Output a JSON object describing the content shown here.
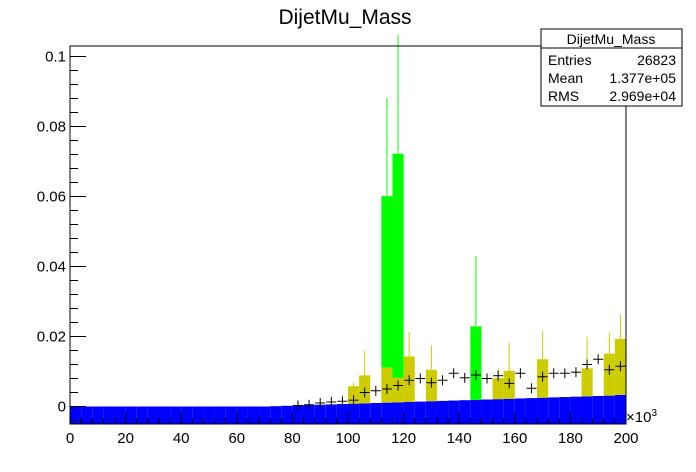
{
  "chart_data": {
    "type": "bar",
    "title": "DijetMu_Mass",
    "xlabel": "",
    "ylabel": "",
    "x_multiplier_label": "×10",
    "x_multiplier_exp": "3",
    "xlim": [
      0,
      200
    ],
    "ylim": [
      -0.005,
      0.103
    ],
    "x_ticks": [
      0,
      20,
      40,
      60,
      80,
      100,
      120,
      140,
      160,
      180,
      200
    ],
    "x_tick_labels": [
      "0",
      "20",
      "40",
      "60",
      "80",
      "100",
      "120",
      "140",
      "160",
      "180",
      "200"
    ],
    "y_ticks": [
      0,
      0.02,
      0.04,
      0.06,
      0.08,
      0.1
    ],
    "y_tick_labels": [
      "0",
      "0.02",
      "0.04",
      "0.06",
      "0.08",
      "0.1"
    ],
    "bin_width": 4,
    "series": [
      {
        "kind": "stack",
        "color": "#0000ff",
        "bins": [
          [
            0,
            0.0
          ],
          [
            4,
            0.0
          ],
          [
            8,
            0.0
          ],
          [
            12,
            0.0
          ],
          [
            16,
            0.0
          ],
          [
            20,
            0.0
          ],
          [
            24,
            0.0
          ],
          [
            28,
            0.0
          ],
          [
            32,
            0.0
          ],
          [
            36,
            0.0
          ],
          [
            40,
            0.0
          ],
          [
            44,
            0.0
          ],
          [
            48,
            0.0
          ],
          [
            52,
            0.0
          ],
          [
            56,
            0.0
          ],
          [
            60,
            0.0
          ],
          [
            64,
            0.0
          ],
          [
            68,
            0.0
          ],
          [
            72,
            0.0001
          ],
          [
            76,
            0.0002
          ],
          [
            80,
            0.0003
          ],
          [
            84,
            0.0004
          ],
          [
            88,
            0.0005
          ],
          [
            92,
            0.0006
          ],
          [
            96,
            0.0007
          ],
          [
            100,
            0.0008
          ],
          [
            104,
            0.0009
          ],
          [
            108,
            0.001
          ],
          [
            112,
            0.0011
          ],
          [
            116,
            0.0012
          ],
          [
            120,
            0.0013
          ],
          [
            124,
            0.0014
          ],
          [
            128,
            0.0015
          ],
          [
            132,
            0.0016
          ],
          [
            136,
            0.0017
          ],
          [
            140,
            0.0018
          ],
          [
            144,
            0.0019
          ],
          [
            148,
            0.002
          ],
          [
            152,
            0.0021
          ],
          [
            156,
            0.0022
          ],
          [
            160,
            0.0023
          ],
          [
            164,
            0.0024
          ],
          [
            168,
            0.0025
          ],
          [
            172,
            0.0026
          ],
          [
            176,
            0.0027
          ],
          [
            180,
            0.0028
          ],
          [
            184,
            0.0029
          ],
          [
            188,
            0.003
          ],
          [
            192,
            0.0031
          ],
          [
            196,
            0.0033
          ]
        ]
      },
      {
        "kind": "stack",
        "color": "#cccc00",
        "bins": [
          [
            100,
            0.005
          ],
          [
            104,
            0.008
          ],
          [
            112,
            0.01
          ],
          [
            116,
            0.007
          ],
          [
            120,
            0.013
          ],
          [
            128,
            0.009
          ],
          [
            152,
            0.006
          ],
          [
            156,
            0.008
          ],
          [
            168,
            0.011
          ],
          [
            184,
            0.008
          ],
          [
            192,
            0.012
          ],
          [
            196,
            0.016
          ]
        ],
        "errors": [
          [
            100,
            0.006
          ],
          [
            104,
            0.015
          ],
          [
            112,
            0.015
          ],
          [
            116,
            0.012
          ],
          [
            120,
            0.02
          ],
          [
            128,
            0.016
          ],
          [
            152,
            0.009
          ],
          [
            156,
            0.016
          ],
          [
            168,
            0.019
          ],
          [
            184,
            0.017
          ],
          [
            192,
            0.018
          ],
          [
            196,
            0.023
          ]
        ]
      },
      {
        "kind": "stack",
        "color": "#00ff00",
        "bins": [
          [
            112,
            0.049
          ],
          [
            116,
            0.064
          ],
          [
            144,
            0.021
          ]
        ],
        "errors": [
          [
            112,
            0.077
          ],
          [
            116,
            0.098
          ],
          [
            144,
            0.041
          ]
        ]
      },
      {
        "kind": "markers",
        "color": "#000000",
        "points": [
          [
            82,
            0.0003
          ],
          [
            86,
            0.0005
          ],
          [
            90,
            0.001
          ],
          [
            94,
            0.0013
          ],
          [
            98,
            0.0015
          ],
          [
            102,
            0.0018
          ],
          [
            106,
            0.004
          ],
          [
            110,
            0.0045
          ],
          [
            114,
            0.005
          ],
          [
            118,
            0.006
          ],
          [
            122,
            0.0075
          ],
          [
            126,
            0.008
          ],
          [
            130,
            0.0068
          ],
          [
            134,
            0.0075
          ],
          [
            138,
            0.0095
          ],
          [
            142,
            0.0082
          ],
          [
            146,
            0.009
          ],
          [
            150,
            0.008
          ],
          [
            154,
            0.0088
          ],
          [
            158,
            0.0066
          ],
          [
            162,
            0.0095
          ],
          [
            166,
            0.0052
          ],
          [
            170,
            0.0085
          ],
          [
            174,
            0.0095
          ],
          [
            178,
            0.0095
          ],
          [
            182,
            0.0098
          ],
          [
            186,
            0.012
          ],
          [
            190,
            0.0135
          ],
          [
            194,
            0.0105
          ],
          [
            198,
            0.0115
          ]
        ]
      }
    ],
    "stats": {
      "title": "DijetMu_Mass",
      "rows": [
        {
          "label": "Entries",
          "value": "26823"
        },
        {
          "label": "Mean",
          "value": "1.377e+05"
        },
        {
          "label": "RMS",
          "value": "2.969e+04"
        }
      ]
    }
  }
}
